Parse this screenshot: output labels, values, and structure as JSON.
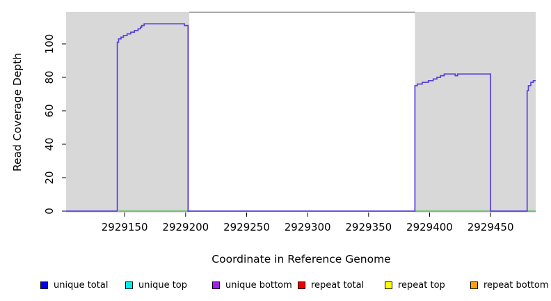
{
  "page": {
    "background": "#ffffff"
  },
  "chart_data": {
    "type": "line",
    "title": "",
    "xlabel": "Coordinate in Reference Genome",
    "ylabel": "Read Coverage Depth",
    "xlim": [
      2929102,
      2929487
    ],
    "ylim": [
      0,
      119
    ],
    "xticks": [
      2929150,
      2929200,
      2929250,
      2929300,
      2929350,
      2929400,
      2929450
    ],
    "yticks": [
      0,
      20,
      40,
      60,
      80,
      100
    ],
    "grid": false,
    "legend_position": "bottom",
    "shade_color": "#d8d8d8",
    "shaded_regions": [
      {
        "from": 2929102,
        "to": 2929203
      },
      {
        "from": 2929388,
        "to": 2929487
      }
    ],
    "top_border_segment": {
      "from": 2929203,
      "to": 2929388,
      "color": "#858585"
    },
    "series": [
      {
        "name": "zero baseline",
        "color": "#2db52d",
        "width": 1.2,
        "step": true,
        "points": [
          [
            2929145,
            0
          ],
          [
            2929487,
            0
          ]
        ]
      },
      {
        "name": "unique bottom coverage",
        "color": "#5a3de0",
        "width": 1.7,
        "step": true,
        "points": [
          [
            2929102,
            0
          ],
          [
            2929144,
            101
          ],
          [
            2929145,
            103
          ],
          [
            2929147,
            104
          ],
          [
            2929149,
            105
          ],
          [
            2929152,
            106
          ],
          [
            2929155,
            107
          ],
          [
            2929158,
            108
          ],
          [
            2929161,
            109
          ],
          [
            2929163,
            110
          ],
          [
            2929164,
            111
          ],
          [
            2929166,
            112
          ],
          [
            2929199,
            111
          ],
          [
            2929202,
            0
          ],
          [
            2929388,
            75
          ],
          [
            2929390,
            76
          ],
          [
            2929394,
            77
          ],
          [
            2929399,
            78
          ],
          [
            2929403,
            79
          ],
          [
            2929406,
            80
          ],
          [
            2929409,
            81
          ],
          [
            2929412,
            82
          ],
          [
            2929421,
            81
          ],
          [
            2929423,
            82
          ],
          [
            2929450,
            0
          ],
          [
            2929480,
            72
          ],
          [
            2929481,
            75
          ],
          [
            2929483,
            77
          ],
          [
            2929485,
            78
          ]
        ]
      }
    ]
  },
  "legend": {
    "items": [
      {
        "label": "unique total",
        "color": "#0000ee"
      },
      {
        "label": "unique top",
        "color": "#00eeee"
      },
      {
        "label": "unique bottom",
        "color": "#a020f0"
      },
      {
        "label": "repeat total",
        "color": "#ee0000"
      },
      {
        "label": "repeat top",
        "color": "#ffff00"
      },
      {
        "label": "repeat bottom",
        "color": "#ffa500"
      }
    ]
  }
}
